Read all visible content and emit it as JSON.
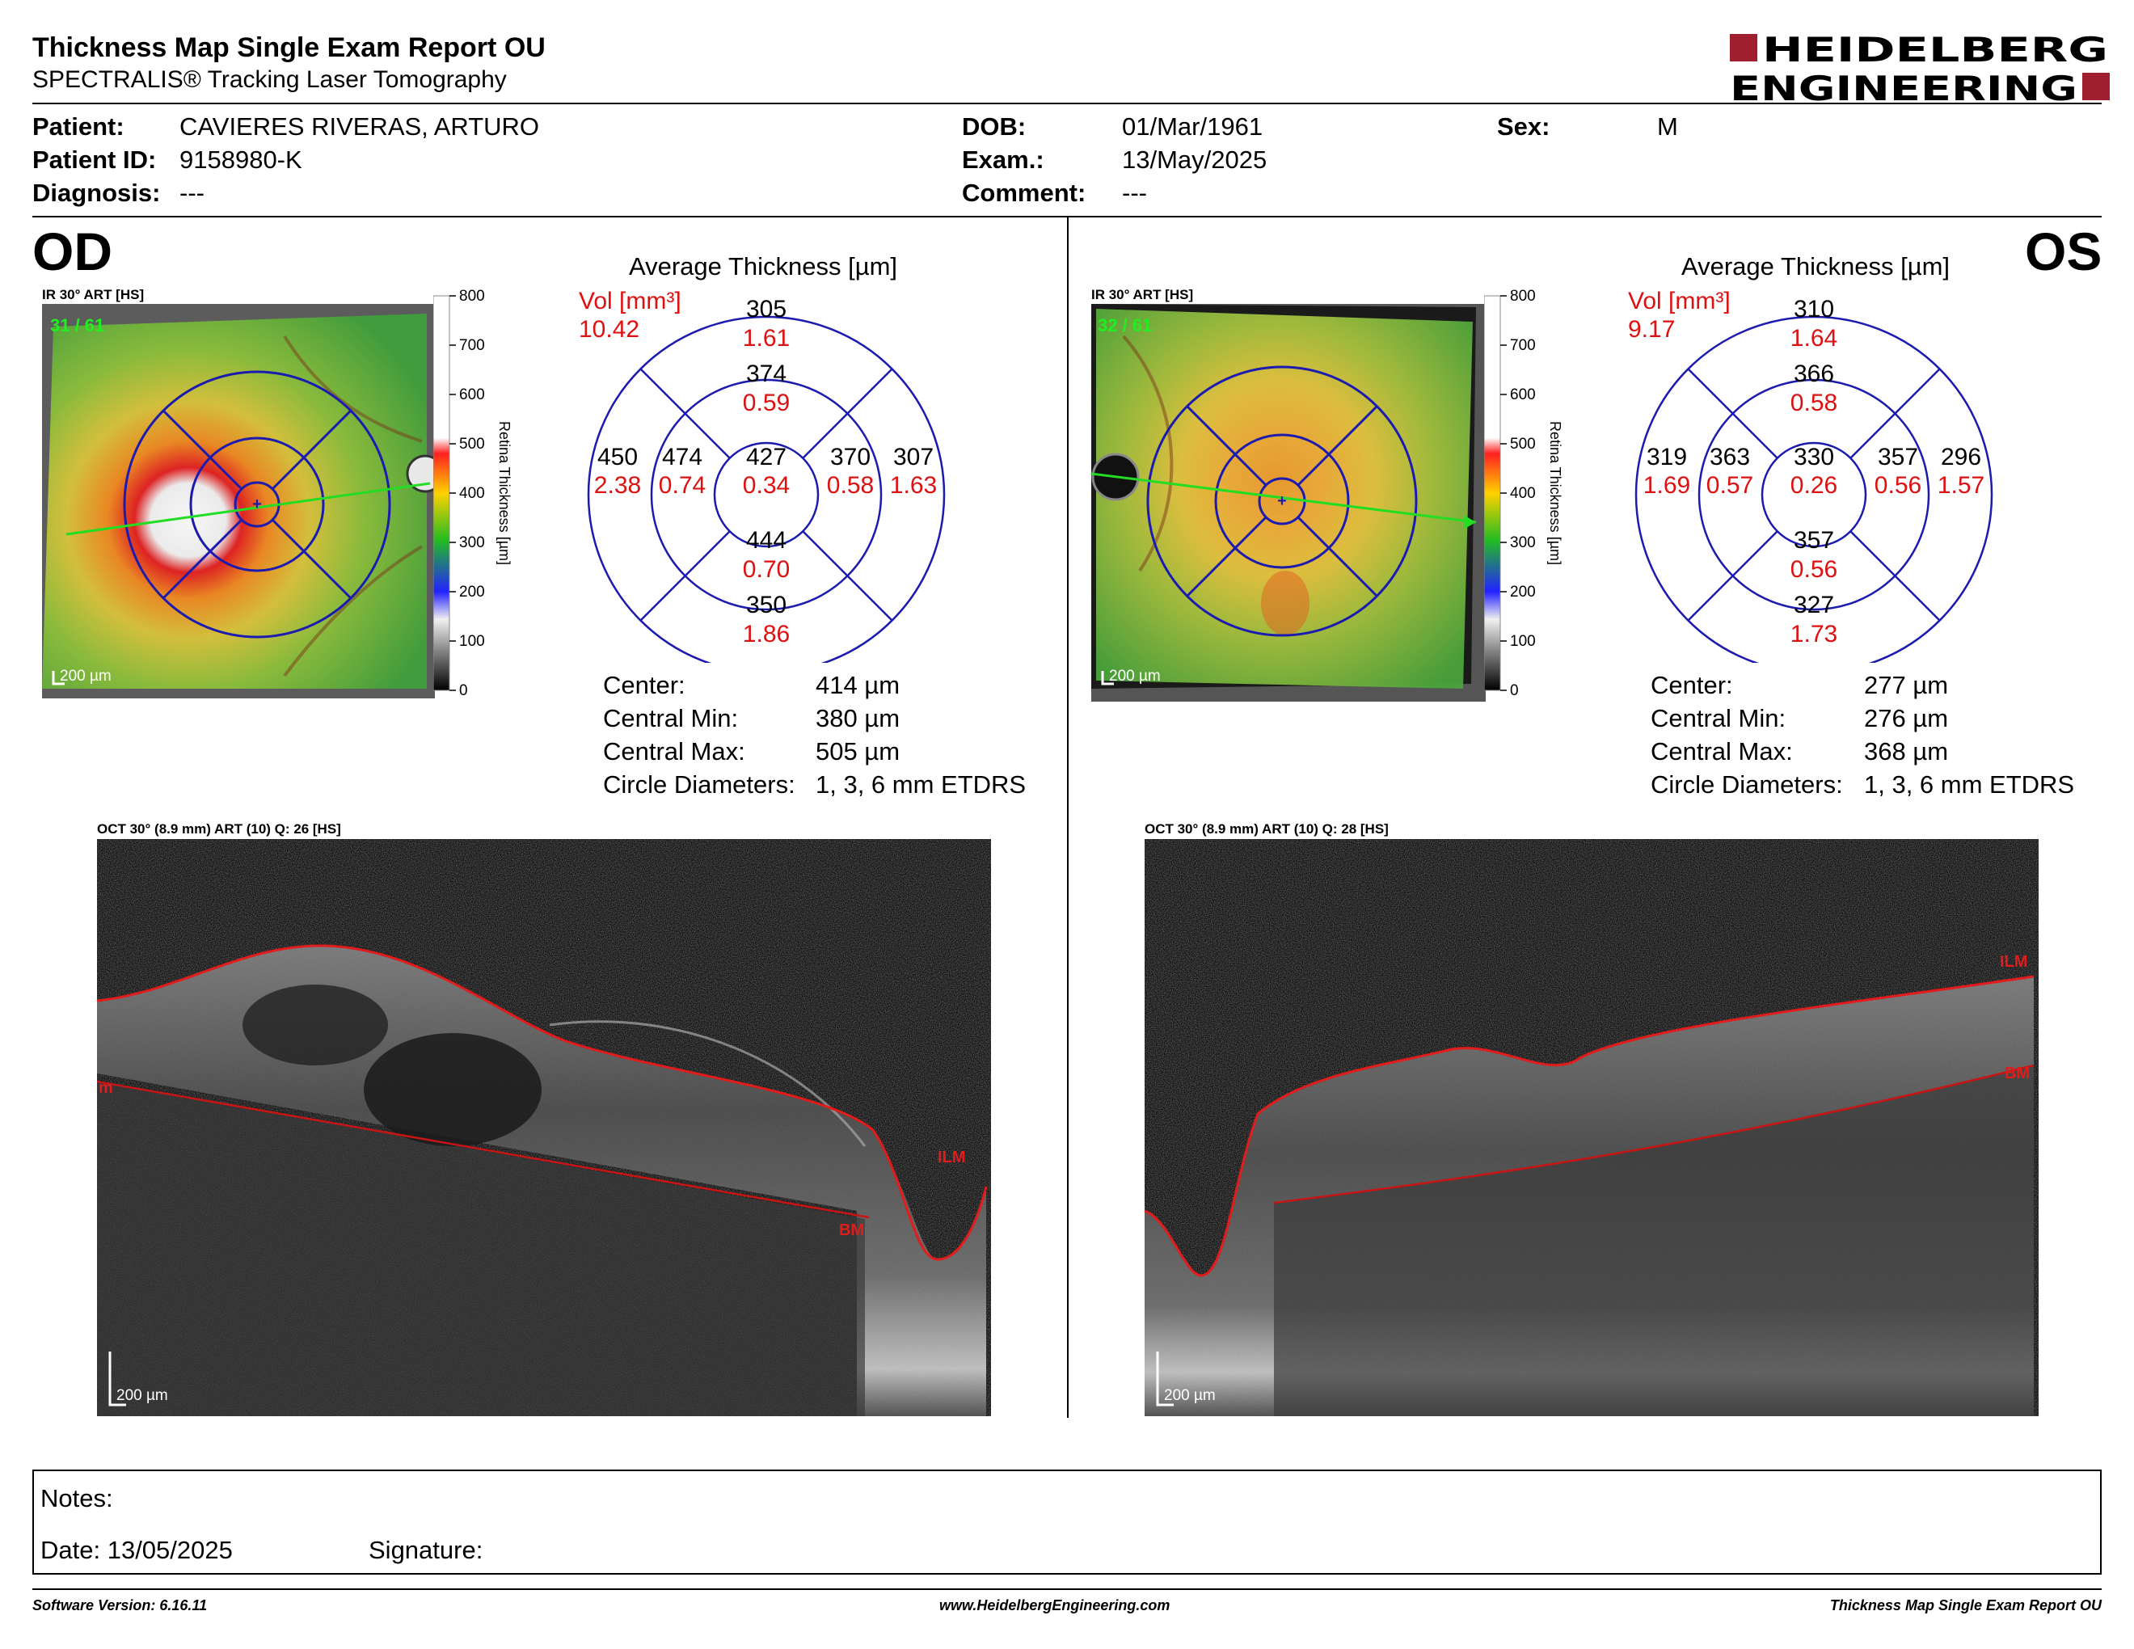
{
  "header": {
    "title": "Thickness Map Single Exam Report OU",
    "subtitle": "SPECTRALIS® Tracking Laser Tomography",
    "logo_line1": "HEIDELBERG",
    "logo_line2": "ENGINEERING"
  },
  "patient": {
    "patient_label": "Patient:",
    "patient_value": "CAVIERES RIVERAS, ARTURO",
    "id_label": "Patient ID:",
    "id_value": "9158980-K",
    "diagnosis_label": "Diagnosis:",
    "diagnosis_value": "---",
    "dob_label": "DOB:",
    "dob_value": "01/Mar/1961",
    "exam_label": "Exam.:",
    "exam_value": "13/May/2025",
    "comment_label": "Comment:",
    "comment_value": "---",
    "sex_label": "Sex:",
    "sex_value": "M"
  },
  "scale": {
    "ticks": [
      "800",
      "700",
      "600",
      "500",
      "400",
      "300",
      "200",
      "100",
      "0"
    ],
    "label": "Retina Thickness [µm]",
    "colors": [
      "#ffffff",
      "#ffffff",
      "#ffffff",
      "#ff0000",
      "#ffff00",
      "#00cc00",
      "#0000ff",
      "#000000"
    ]
  },
  "od": {
    "eye": "OD",
    "ir_label": "IR 30° ART [HS]",
    "frames": "31 / 61",
    "scalebar": "200 µm",
    "avg_title": "Average Thickness [µm]",
    "vol_label": "Vol [mm³]",
    "vol_total": "10.42",
    "grid": {
      "sup_outer": "305",
      "sup_outer_vol": "1.61",
      "sup_inner": "374",
      "sup_inner_vol": "0.59",
      "temp_outer": "450",
      "temp_outer_vol": "2.38",
      "temp_inner": "474",
      "temp_inner_vol": "0.74",
      "center": "427",
      "center_vol": "0.34",
      "nasal_inner": "370",
      "nasal_inner_vol": "0.58",
      "nasal_outer": "307",
      "nasal_outer_vol": "1.63",
      "inf_inner": "444",
      "inf_inner_vol": "0.70",
      "inf_outer": "350",
      "inf_outer_vol": "1.86"
    },
    "stats": {
      "center_label": "Center:",
      "center_value": "414 µm",
      "min_label": "Central Min:",
      "min_value": "380 µm",
      "max_label": "Central Max:",
      "max_value": "505 µm",
      "diam_label": "Circle Diameters:",
      "diam_value": "1, 3, 6 mm ETDRS"
    },
    "oct_label": "OCT 30° (8.9 mm) ART (10) Q: 26 [HS]",
    "oct_scalebar": "200 µm",
    "ilm": "ILM",
    "bm": "BM",
    "bm_left": "m"
  },
  "os": {
    "eye": "OS",
    "ir_label": "IR 30° ART [HS]",
    "frames": "32 / 61",
    "scalebar": "200 µm",
    "avg_title": "Average Thickness [µm]",
    "vol_label": "Vol [mm³]",
    "vol_total": "9.17",
    "grid": {
      "sup_outer": "310",
      "sup_outer_vol": "1.64",
      "sup_inner": "366",
      "sup_inner_vol": "0.58",
      "temp_outer": "319",
      "temp_outer_vol": "1.69",
      "temp_inner": "363",
      "temp_inner_vol": "0.57",
      "center": "330",
      "center_vol": "0.26",
      "nasal_inner": "357",
      "nasal_inner_vol": "0.56",
      "nasal_outer": "296",
      "nasal_outer_vol": "1.57",
      "inf_inner": "357",
      "inf_inner_vol": "0.56",
      "inf_outer": "327",
      "inf_outer_vol": "1.73"
    },
    "stats": {
      "center_label": "Center:",
      "center_value": "277 µm",
      "min_label": "Central Min:",
      "min_value": "276 µm",
      "max_label": "Central Max:",
      "max_value": "368 µm",
      "diam_label": "Circle Diameters:",
      "diam_value": "1, 3, 6 mm ETDRS"
    },
    "oct_label": "OCT 30° (8.9 mm) ART (10) Q: 28 [HS]",
    "oct_scalebar": "200 µm",
    "ilm": "ILM",
    "bm": "BM"
  },
  "notes": {
    "notes_label": "Notes:",
    "date_label": "Date: 13/05/2025",
    "signature_label": "Signature:"
  },
  "footer": {
    "software": "Software Version: 6.16.11",
    "website": "www.HeidelbergEngineering.com",
    "report": "Thickness Map Single Exam Report OU"
  }
}
